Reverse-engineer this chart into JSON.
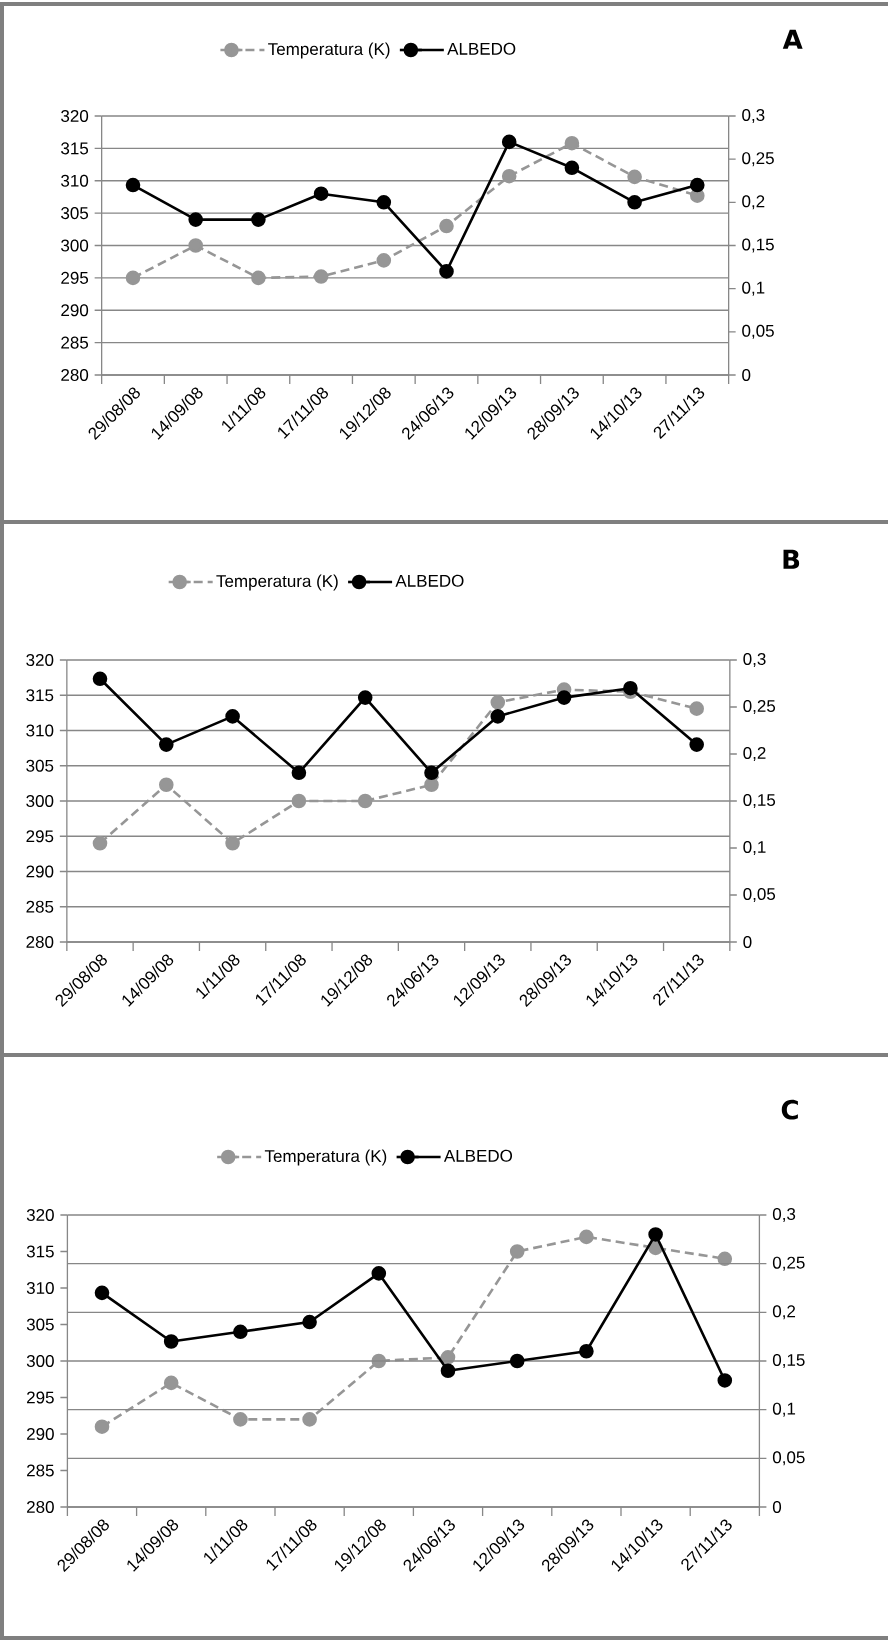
{
  "chart_data": [
    {
      "type": "line",
      "title": "A",
      "categories": [
        "29/08/08",
        "14/09/08",
        "1/11/08",
        "17/11/08",
        "19/12/08",
        "24/06/13",
        "12/09/13",
        "28/09/13",
        "14/10/13",
        "27/11/13"
      ],
      "series": [
        {
          "name": "Temperatura (K)",
          "color": "#969696",
          "line_style": "dashed",
          "values": [
            295,
            300,
            295,
            295.2,
            297.7,
            303,
            310.7,
            315.8,
            310.6,
            307.7
          ]
        },
        {
          "name": "ALBEDO",
          "color": "#000000",
          "line_style": "solid",
          "axis": "y2",
          "values": [
            0.22,
            0.18,
            0.18,
            0.21,
            0.2,
            0.12,
            0.27,
            0.24,
            0.2,
            0.22
          ]
        }
      ],
      "ylim": [
        280,
        320
      ],
      "yticks": [
        280,
        285,
        290,
        295,
        300,
        305,
        310,
        315,
        320
      ],
      "y2lim": [
        0,
        0.3
      ],
      "y2ticks": [
        0,
        {
          "value": 0.05,
          "label": "0,05"
        },
        {
          "value": 0.1,
          "label": "0,1"
        },
        {
          "value": 0.15,
          "label": "0,15"
        },
        {
          "value": 0.2,
          "label": "0,2"
        },
        {
          "value": 0.25,
          "label": "0,25"
        },
        {
          "value": 0.3,
          "label": "0,3"
        }
      ],
      "grid": "y",
      "legend": "top",
      "marker": "circle"
    },
    {
      "type": "line",
      "title": "B",
      "categories": [
        "29/08/08",
        "14/09/08",
        "1/11/08",
        "17/11/08",
        "19/12/08",
        "24/06/13",
        "12/09/13",
        "28/09/13",
        "14/10/13",
        "27/11/13"
      ],
      "series": [
        {
          "name": "Temperatura (K)",
          "color": "#969696",
          "line_style": "dashed",
          "values": [
            294,
            302.3,
            294,
            300,
            300,
            302.3,
            314,
            315.8,
            315.5,
            313.1
          ]
        },
        {
          "name": "ALBEDO",
          "color": "#000000",
          "line_style": "solid",
          "axis": "y2",
          "values": [
            0.28,
            0.21,
            0.24,
            0.18,
            0.26,
            0.18,
            0.24,
            0.26,
            0.27,
            0.21
          ]
        }
      ],
      "ylim": [
        280,
        320
      ],
      "yticks": [
        280,
        285,
        290,
        295,
        300,
        305,
        310,
        315,
        320
      ],
      "y2lim": [
        0,
        0.3
      ],
      "y2ticks": [
        0,
        {
          "value": 0.05,
          "label": "0,05"
        },
        {
          "value": 0.1,
          "label": "0,1"
        },
        {
          "value": 0.15,
          "label": "0,15"
        },
        {
          "value": 0.2,
          "label": "0,2"
        },
        {
          "value": 0.25,
          "label": "0,25"
        },
        {
          "value": 0.3,
          "label": "0,3"
        }
      ],
      "grid": "y",
      "legend": "top",
      "marker": "circle"
    },
    {
      "type": "line",
      "title": "C",
      "categories": [
        "29/08/08",
        "14/09/08",
        "1/11/08",
        "17/11/08",
        "19/12/08",
        "24/06/13",
        "12/09/13",
        "28/09/13",
        "14/10/13",
        "27/11/13"
      ],
      "series": [
        {
          "name": "Temperatura (K)",
          "color": "#969696",
          "line_style": "dashed",
          "values": [
            291,
            297,
            292,
            292,
            300,
            300.5,
            315,
            317,
            315.5,
            314
          ]
        },
        {
          "name": "ALBEDO",
          "color": "#000000",
          "line_style": "solid",
          "axis": "y2",
          "values": [
            0.22,
            0.17,
            0.18,
            0.19,
            0.24,
            0.14,
            0.15,
            0.16,
            0.28,
            0.13
          ]
        }
      ],
      "ylim": [
        280,
        320
      ],
      "yticks": [
        280,
        285,
        290,
        295,
        300,
        305,
        310,
        315,
        320
      ],
      "y2lim": [
        0,
        0.3
      ],
      "y2ticks": [
        0,
        {
          "value": 0.05,
          "label": "0,05"
        },
        {
          "value": 0.1,
          "label": "0,1"
        },
        {
          "value": 0.15,
          "label": "0,15"
        },
        {
          "value": 0.2,
          "label": "0,2"
        },
        {
          "value": 0.25,
          "label": "0,25"
        },
        {
          "value": 0.3,
          "label": "0,3"
        }
      ],
      "grid": "y2",
      "legend": "top",
      "marker": "circle"
    }
  ]
}
